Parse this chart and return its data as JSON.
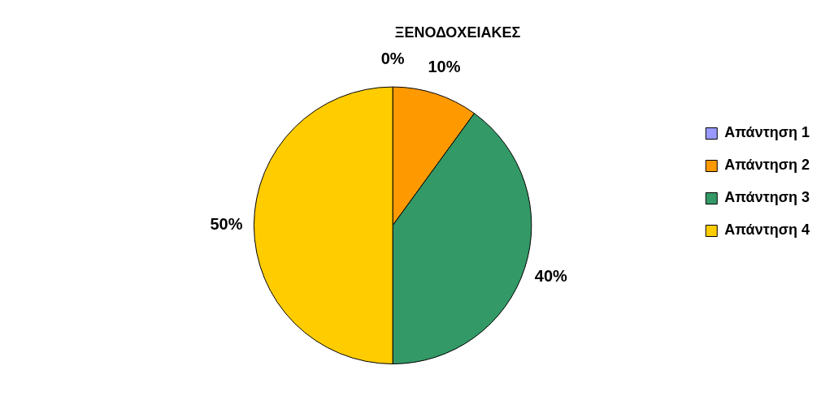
{
  "chart_data": {
    "type": "pie",
    "title": "ΞΕΝΟΔΟΧΕΙΑΚΕΣ",
    "categories": [
      "Απάντηση 1",
      "Απάντηση 2",
      "Απάντηση 3",
      "Απάντηση 4"
    ],
    "values": [
      0,
      10,
      40,
      50
    ],
    "colors": [
      "#9999ff",
      "#ff9900",
      "#339966",
      "#ffcc00"
    ],
    "value_labels": [
      "0%",
      "10%",
      "40%",
      "50%"
    ],
    "legend": "right"
  }
}
